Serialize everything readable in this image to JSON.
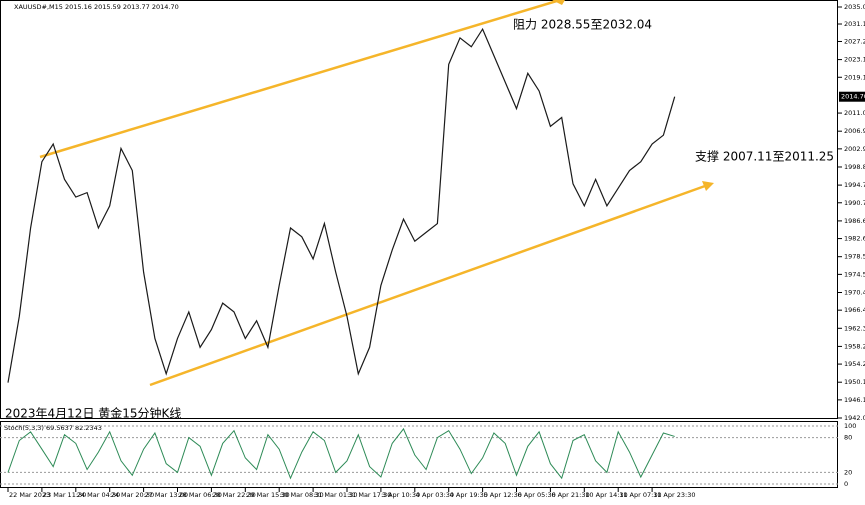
{
  "chart_data": {
    "type": "line",
    "symbol_header": "XAUUSD#,M15  2015.16 2015.59 2013.77 2014.70",
    "caption": "2023年4月12日 黄金15分钟K线",
    "annotations": [
      "阻力 2028.55至2032.04",
      "支撑 2007.11至2011.25"
    ],
    "categories": [
      "22 Mar 2023",
      null,
      null,
      "23 Mar 11:30",
      null,
      null,
      "24 Mar 04:30",
      null,
      null,
      "24 Mar 20:30",
      null,
      null,
      "27 Mar 13:00",
      null,
      null,
      "28 Mar 06:30",
      null,
      null,
      "28 Mar 22:30",
      null,
      null,
      "29 Mar 15:30",
      null,
      null,
      "30 Mar 08:30",
      null,
      null,
      "31 Mar 01:30",
      null,
      null,
      "31 Mar 17:30",
      null,
      null,
      "3 Apr 10:30",
      null,
      null,
      "4 Apr 03:30",
      null,
      null,
      "4 Apr 19:30",
      null,
      null,
      "5 Apr 12:30",
      null,
      null,
      "6 Apr 05:30",
      null,
      null,
      "6 Apr 21:30",
      null,
      null,
      "10 Apr 14:30",
      null,
      null,
      "11 Apr 07:30",
      null,
      null,
      "11 Apr 23:30",
      null,
      null
    ],
    "series": [
      {
        "name": "XAUUSD#",
        "color": "#1a1a1a",
        "values": [
          1950,
          1965,
          1985,
          2000,
          2004,
          1996,
          1992,
          1993,
          1985,
          1990,
          2003,
          1998,
          1975,
          1960,
          1952,
          1960,
          1966,
          1958,
          1962,
          1968,
          1966,
          1960,
          1964,
          1958,
          1972,
          1985,
          1983,
          1978,
          1986,
          1975,
          1965,
          1952,
          1958,
          1972,
          1980,
          1987,
          1982,
          1984,
          1986,
          2022,
          2028,
          2026,
          2030,
          2024,
          2018,
          2012,
          2020,
          2016,
          2008,
          2010,
          1995,
          1990,
          1996,
          1990,
          1994,
          1998,
          2000,
          2004,
          2006,
          2014.7
        ]
      }
    ],
    "ylim": [
      1942,
      2035
    ],
    "yticks": [
      {
        "value": 2035,
        "label": "2035.00"
      },
      {
        "value": 2031.15,
        "label": "2031.15"
      },
      {
        "value": 2027.2,
        "label": "2027.20"
      },
      {
        "value": 2023.1,
        "label": "2023.10"
      },
      {
        "value": 2019.1,
        "label": "2019.10"
      },
      {
        "value": 2011,
        "label": "2011.00"
      },
      {
        "value": 2006.9,
        "label": "2006.90"
      },
      {
        "value": 2002.9,
        "label": "2002.90"
      },
      {
        "value": 1998.8,
        "label": "1998.80"
      },
      {
        "value": 1994.7,
        "label": "1994.70"
      },
      {
        "value": 1990.7,
        "label": "1990.70"
      },
      {
        "value": 1986.6,
        "label": "1986.60"
      },
      {
        "value": 1982.6,
        "label": "1982.60"
      },
      {
        "value": 1978.5,
        "label": "1978.50"
      },
      {
        "value": 1974.5,
        "label": "1974.50"
      },
      {
        "value": 1970.4,
        "label": "1970.40"
      },
      {
        "value": 1966.4,
        "label": "1966.40"
      },
      {
        "value": 1962.3,
        "label": "1962.30"
      },
      {
        "value": 1958.2,
        "label": "1958.20"
      },
      {
        "value": 1954.2,
        "label": "1954.20"
      },
      {
        "value": 1950.1,
        "label": "1950.10"
      },
      {
        "value": 1946.1,
        "label": "1946.10"
      },
      {
        "value": 1942,
        "label": "1942.00"
      }
    ],
    "price_marker": {
      "value": 2014.7,
      "label": "2014.70"
    },
    "oscillator": {
      "title": "Stoch(5,3,3) 69.5637 82.2343",
      "color": "#2e8b57",
      "values": [
        20,
        75,
        90,
        60,
        30,
        85,
        70,
        25,
        55,
        90,
        40,
        15,
        60,
        88,
        35,
        20,
        80,
        65,
        15,
        70,
        92,
        45,
        25,
        85,
        60,
        10,
        55,
        90,
        75,
        20,
        40,
        85,
        30,
        12,
        70,
        95,
        50,
        25,
        80,
        92,
        60,
        18,
        45,
        88,
        70,
        15,
        65,
        90,
        35,
        10,
        75,
        85,
        40,
        20,
        90,
        55,
        12,
        50,
        88,
        82
      ],
      "ylim": [
        0,
        100
      ],
      "yticks": [
        0,
        20,
        80,
        100
      ]
    }
  }
}
